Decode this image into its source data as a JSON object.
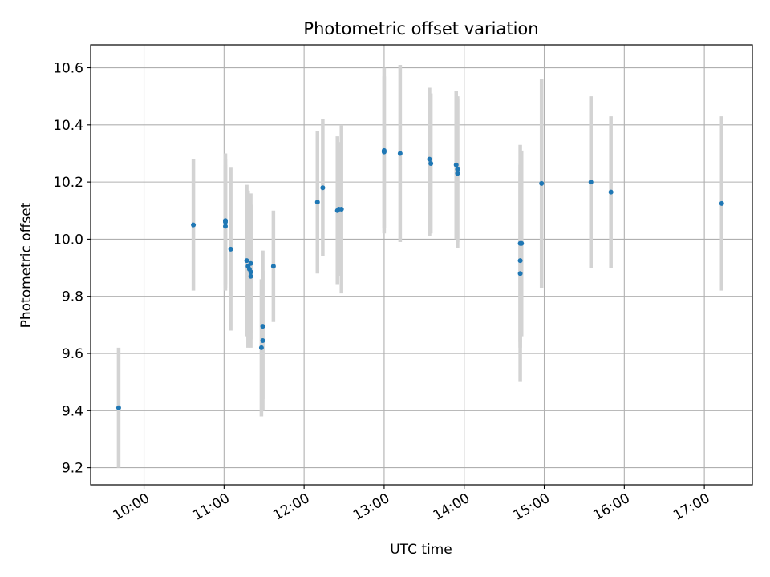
{
  "chart_data": {
    "type": "scatter",
    "title": "Photometric offset variation",
    "xlabel": "UTC time",
    "ylabel": "Photometric offset",
    "xlim": [
      "09:20",
      "17:36"
    ],
    "ylim": [
      9.14,
      10.68
    ],
    "x_ticks": [
      "10:00",
      "11:00",
      "12:00",
      "13:00",
      "14:00",
      "15:00",
      "16:00",
      "17:00"
    ],
    "y_ticks": [
      9.2,
      9.4,
      9.6,
      9.8,
      10.0,
      10.2,
      10.4,
      10.6
    ],
    "grid": true,
    "colors": {
      "point": "#1f77b4",
      "errorbar": "#d3d3d3",
      "grid": "#b0b0b0"
    },
    "points": [
      {
        "x": "09:41",
        "y": 9.41,
        "err_low": 9.2,
        "err_high": 9.62
      },
      {
        "x": "10:37",
        "y": 10.05,
        "err_low": 9.82,
        "err_high": 10.28
      },
      {
        "x": "11:01",
        "y": 10.065,
        "err_low": 9.82,
        "err_high": 10.3
      },
      {
        "x": "11:01",
        "y": 10.06,
        "err_low": 9.84,
        "err_high": 10.28
      },
      {
        "x": "11:01",
        "y": 10.045,
        "err_low": 9.83,
        "err_high": 10.26
      },
      {
        "x": "11:05",
        "y": 9.965,
        "err_low": 9.68,
        "err_high": 10.25
      },
      {
        "x": "11:17",
        "y": 9.925,
        "err_low": 9.66,
        "err_high": 10.19
      },
      {
        "x": "11:18",
        "y": 9.905,
        "err_low": 9.62,
        "err_high": 10.17
      },
      {
        "x": "11:19",
        "y": 9.895,
        "err_low": 9.64,
        "err_high": 10.15
      },
      {
        "x": "11:20",
        "y": 9.885,
        "err_low": 9.65,
        "err_high": 10.12
      },
      {
        "x": "11:20",
        "y": 9.915,
        "err_low": 9.67,
        "err_high": 10.16
      },
      {
        "x": "11:20",
        "y": 9.87,
        "err_low": 9.62,
        "err_high": 10.12
      },
      {
        "x": "11:28",
        "y": 9.62,
        "err_low": 9.38,
        "err_high": 9.86
      },
      {
        "x": "11:29",
        "y": 9.645,
        "err_low": 9.4,
        "err_high": 9.89
      },
      {
        "x": "11:29",
        "y": 9.695,
        "err_low": 9.44,
        "err_high": 9.96
      },
      {
        "x": "11:37",
        "y": 9.905,
        "err_low": 9.71,
        "err_high": 10.1
      },
      {
        "x": "12:10",
        "y": 10.13,
        "err_low": 9.88,
        "err_high": 10.38
      },
      {
        "x": "12:14",
        "y": 10.18,
        "err_low": 9.94,
        "err_high": 10.42
      },
      {
        "x": "12:25",
        "y": 10.1,
        "err_low": 9.84,
        "err_high": 10.36
      },
      {
        "x": "12:26",
        "y": 10.105,
        "err_low": 9.87,
        "err_high": 10.34
      },
      {
        "x": "12:28",
        "y": 10.105,
        "err_low": 9.81,
        "err_high": 10.4
      },
      {
        "x": "13:00",
        "y": 10.31,
        "err_low": 10.02,
        "err_high": 10.6
      },
      {
        "x": "13:00",
        "y": 10.305,
        "err_low": 10.04,
        "err_high": 10.57
      },
      {
        "x": "13:12",
        "y": 10.3,
        "err_low": 9.99,
        "err_high": 10.61
      },
      {
        "x": "13:34",
        "y": 10.28,
        "err_low": 10.01,
        "err_high": 10.53
      },
      {
        "x": "13:35",
        "y": 10.265,
        "err_low": 10.02,
        "err_high": 10.51
      },
      {
        "x": "13:54",
        "y": 10.26,
        "err_low": 10.0,
        "err_high": 10.52
      },
      {
        "x": "13:55",
        "y": 10.245,
        "err_low": 9.99,
        "err_high": 10.5
      },
      {
        "x": "13:55",
        "y": 10.23,
        "err_low": 9.97,
        "err_high": 10.49
      },
      {
        "x": "14:42",
        "y": 9.985,
        "err_low": 9.64,
        "err_high": 10.33
      },
      {
        "x": "14:42",
        "y": 9.925,
        "err_low": 9.62,
        "err_high": 10.23
      },
      {
        "x": "14:42",
        "y": 9.88,
        "err_low": 9.5,
        "err_high": 10.26
      },
      {
        "x": "14:43",
        "y": 9.985,
        "err_low": 9.66,
        "err_high": 10.31
      },
      {
        "x": "14:58",
        "y": 10.195,
        "err_low": 9.83,
        "err_high": 10.56
      },
      {
        "x": "15:35",
        "y": 10.2,
        "err_low": 9.9,
        "err_high": 10.5
      },
      {
        "x": "15:50",
        "y": 10.165,
        "err_low": 9.9,
        "err_high": 10.43
      },
      {
        "x": "17:13",
        "y": 10.125,
        "err_low": 9.82,
        "err_high": 10.43
      }
    ]
  }
}
